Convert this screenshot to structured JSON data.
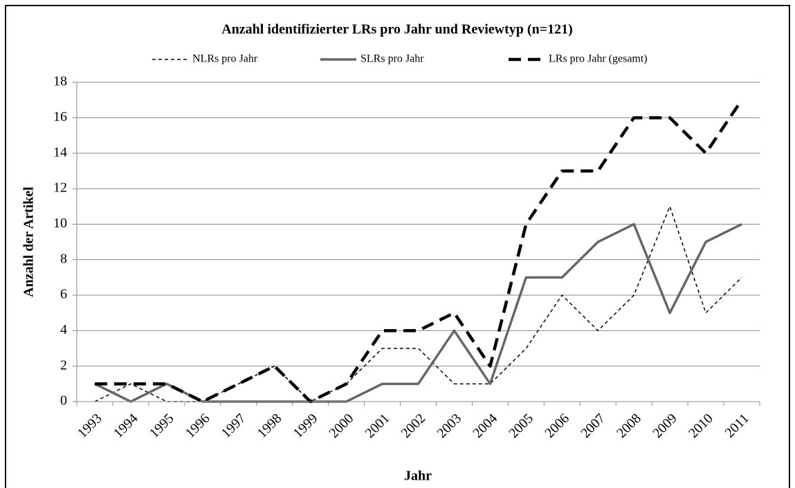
{
  "chart_data": {
    "type": "line",
    "title": "Anzahl identifizierter LRs pro Jahr und Reviewtyp (n=121)",
    "x_label": "Jahr",
    "y_label": "Anzahl der Artikel",
    "categories": [
      "1993",
      "1994",
      "1995",
      "1996",
      "1997",
      "1998",
      "1999",
      "2000",
      "2001",
      "2002",
      "2003",
      "2004",
      "2005",
      "2006",
      "2007",
      "2008",
      "2009",
      "2010",
      "2011"
    ],
    "series": [
      {
        "name": "NLRs pro Jahr",
        "color": "#000000",
        "values": [
          0,
          1,
          0,
          0,
          1,
          2,
          0,
          1,
          3,
          3,
          1,
          1,
          3,
          6,
          4,
          6,
          11,
          5,
          7
        ]
      },
      {
        "name": "SLRs pro Jahr",
        "color": "#666666",
        "values": [
          1,
          0,
          1,
          0,
          0,
          0,
          0,
          0,
          1,
          1,
          4,
          1,
          7,
          7,
          9,
          10,
          5,
          9,
          10
        ]
      },
      {
        "name": "LRs pro Jahr (gesamt)",
        "color": "#000000",
        "values": [
          1,
          1,
          1,
          0,
          1,
          2,
          0,
          1,
          4,
          4,
          5,
          2,
          10,
          13,
          13,
          16,
          16,
          14,
          17
        ]
      }
    ],
    "ylim": [
      0,
      18
    ],
    "yticks": [
      0,
      2,
      4,
      6,
      8,
      10,
      12,
      14,
      16,
      18
    ],
    "grid": true,
    "legend": "top"
  }
}
